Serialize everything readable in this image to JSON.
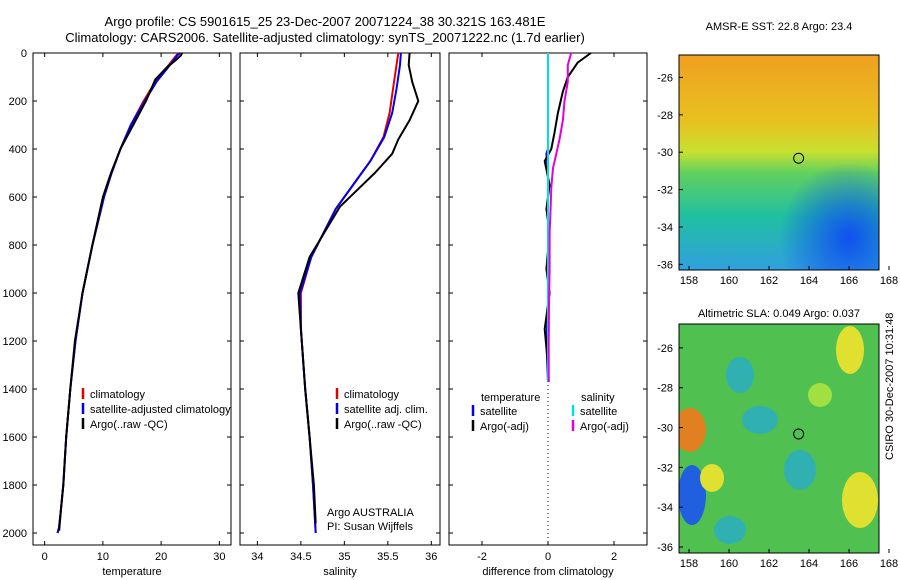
{
  "header": {
    "line1": "Argo profile: CS 5901615_25 23-Dec-2007 20071224_38 30.321S 163.481E",
    "line2": "Climatology: CARS2006. Satellite-adjusted climatology: synTS_20071222.nc (1.7d earlier)"
  },
  "side_label": "CSIRO 30-Dec-2007 10:31:48",
  "colors": {
    "climatology": "#e00000",
    "satellite": "#0000ee",
    "argo": "#000000",
    "satellite_sal": "#00e0e0",
    "argo_sal": "#e000e0"
  },
  "chart_data": [
    {
      "type": "line",
      "id": "temperature",
      "xlabel": "temperature",
      "xlim": [
        -2,
        32
      ],
      "ylim": [
        0,
        2050
      ],
      "y_reversed": true,
      "xticks": [
        "0",
        "10",
        "20",
        "30"
      ],
      "yticks": [
        "0",
        "200",
        "400",
        "600",
        "800",
        "1000",
        "1200",
        "1400",
        "1600",
        "1800",
        "2000"
      ],
      "legend": [
        "climatology",
        "satellite-adjusted climatology",
        "Argo(..raw -QC)"
      ],
      "legend_colors": [
        "#e00000",
        "#0000ee",
        "#000000"
      ],
      "series": [
        {
          "name": "climatology",
          "color": "#e00000",
          "x": [
            23,
            22.6,
            21,
            19,
            17,
            14.8,
            13,
            11.5,
            10.2,
            8.2,
            6.5,
            5.3,
            4.4,
            3.7,
            3.2,
            2.8,
            2.45,
            2.2
          ],
          "y": [
            0,
            10,
            60,
            120,
            200,
            300,
            400,
            500,
            600,
            800,
            1000,
            1200,
            1400,
            1600,
            1800,
            1900,
            1980,
            2000
          ]
        },
        {
          "name": "satellite-adjusted climatology",
          "color": "#0000ee",
          "x": [
            23.2,
            22.8,
            21.2,
            19.2,
            17.2,
            14.8,
            13,
            11.5,
            10.2,
            8.2,
            6.5,
            5.3,
            4.4,
            3.7,
            3.2,
            2.8,
            2.45,
            2.2
          ],
          "y": [
            0,
            10,
            60,
            120,
            200,
            300,
            400,
            500,
            600,
            800,
            1000,
            1200,
            1400,
            1600,
            1800,
            1900,
            1980,
            2000
          ]
        },
        {
          "name": "Argo(..raw -QC)",
          "color": "#000000",
          "x": [
            23.6,
            23.4,
            22.5,
            21,
            19,
            17.4,
            15.2,
            13,
            11.4,
            10,
            8.2,
            6.5,
            5.2,
            4.4,
            3.7,
            3.2,
            2.8,
            2.5
          ],
          "y": [
            0,
            10,
            30,
            60,
            110,
            200,
            300,
            400,
            500,
            600,
            800,
            1000,
            1200,
            1400,
            1600,
            1800,
            1900,
            1990
          ]
        }
      ]
    },
    {
      "type": "line",
      "id": "salinity",
      "xlabel": "salinity",
      "xlim": [
        33.8,
        36.1
      ],
      "ylim": [
        0,
        2050
      ],
      "y_reversed": true,
      "xticks": [
        "34",
        "34.5",
        "35",
        "35.5",
        "36"
      ],
      "legend": [
        "climatology",
        "satellite adj. clim.",
        "Argo(..raw -QC)"
      ],
      "legend_colors": [
        "#e00000",
        "#0000ee",
        "#000000"
      ],
      "annotation": [
        "Argo AUSTRALIA",
        "PI: Susan Wijffels"
      ],
      "series": [
        {
          "name": "climatology",
          "color": "#e00000",
          "x": [
            35.62,
            35.6,
            35.56,
            35.52,
            35.45,
            35.3,
            35.1,
            34.9,
            34.62,
            34.5,
            34.5,
            34.55,
            34.6,
            34.64,
            34.67
          ],
          "y": [
            0,
            50,
            150,
            250,
            350,
            450,
            550,
            650,
            850,
            1000,
            1150,
            1400,
            1600,
            1800,
            2000
          ]
        },
        {
          "name": "satellite adj. clim.",
          "color": "#0000ee",
          "x": [
            35.65,
            35.64,
            35.6,
            35.55,
            35.46,
            35.3,
            35.1,
            34.9,
            34.62,
            34.49,
            34.5,
            34.55,
            34.6,
            34.64,
            34.67
          ],
          "y": [
            0,
            50,
            150,
            250,
            350,
            450,
            550,
            650,
            850,
            1000,
            1150,
            1400,
            1600,
            1800,
            2000
          ]
        },
        {
          "name": "Argo(..raw -QC)",
          "color": "#000000",
          "x": [
            35.75,
            35.74,
            35.78,
            35.85,
            35.75,
            35.62,
            35.55,
            35.35,
            35.15,
            34.95,
            34.6,
            34.47,
            34.5,
            34.55,
            34.6,
            34.65,
            34.67
          ],
          "y": [
            0,
            50,
            120,
            200,
            280,
            360,
            420,
            500,
            570,
            640,
            850,
            1000,
            1150,
            1400,
            1600,
            1800,
            1960
          ]
        }
      ]
    },
    {
      "type": "line",
      "id": "difference",
      "xlabel": "difference from climatology",
      "xlim": [
        -3,
        3
      ],
      "ylim": [
        0,
        2050
      ],
      "y_reversed": true,
      "xticks": [
        "-2",
        "0",
        "2"
      ],
      "legend_groups": [
        {
          "title": "temperature",
          "items": [
            "satellite",
            "Argo(-adj)"
          ],
          "colors": [
            "#0000ee",
            "#000000"
          ]
        },
        {
          "title": "salinity",
          "items": [
            "satellite",
            "Argo(-adj)"
          ],
          "colors": [
            "#00e0e0",
            "#e000e0"
          ]
        }
      ],
      "series": [
        {
          "name": "temperature satellite",
          "color": "#0000ee",
          "x": [
            0,
            0,
            0,
            -0.05,
            0,
            0,
            0.02,
            -0.05,
            0
          ],
          "y": [
            0,
            300,
            400,
            420,
            500,
            700,
            1000,
            1200,
            1370
          ]
        },
        {
          "name": "temperature Argo(-adj)",
          "color": "#000000",
          "x": [
            1.3,
            0.9,
            0.6,
            0.45,
            0.3,
            0.2,
            0.1,
            -0.1,
            0.05,
            -0.05,
            0.05,
            -0.05,
            0.05,
            -0.1,
            0,
            0.02
          ],
          "y": [
            0,
            40,
            100,
            160,
            250,
            330,
            400,
            450,
            550,
            650,
            750,
            900,
            1000,
            1150,
            1300,
            1370
          ]
        },
        {
          "name": "salinity satellite",
          "color": "#00e0e0",
          "x": [
            0,
            0,
            0,
            0,
            0
          ],
          "y": [
            0,
            300,
            700,
            1100,
            1370
          ]
        },
        {
          "name": "salinity Argo(-adj)",
          "color": "#e000e0",
          "x": [
            0.7,
            0.6,
            0.6,
            0.5,
            0.45,
            0.35,
            0.25,
            0.15,
            0.1,
            0.08,
            0.05,
            0.05,
            0.03,
            0.02,
            0.02
          ],
          "y": [
            0,
            50,
            120,
            200,
            280,
            360,
            420,
            480,
            560,
            650,
            750,
            900,
            1050,
            1200,
            1370
          ]
        }
      ]
    },
    {
      "type": "heatmap",
      "id": "sst_map",
      "title": "AMSR-E SST: 22.8 Argo: 23.4",
      "xlim": [
        157.5,
        167.5
      ],
      "ylim": [
        -36.3,
        -24.8
      ],
      "xticks": [
        "158",
        "160",
        "162",
        "164",
        "166",
        "168"
      ],
      "yticks": [
        "-26",
        "-28",
        "-30",
        "-32",
        "-34",
        "-36"
      ],
      "argo_position": {
        "lon": 163.481,
        "lat": -30.321
      }
    },
    {
      "type": "heatmap",
      "id": "sla_map",
      "title": "Altimetric SLA: 0.049 Argo: 0.037",
      "xlim": [
        157.5,
        167.5
      ],
      "ylim": [
        -36.3,
        -24.8
      ],
      "xticks": [
        "158",
        "160",
        "162",
        "164",
        "166",
        "168"
      ],
      "yticks": [
        "-26",
        "-28",
        "-30",
        "-32",
        "-34",
        "-36"
      ],
      "argo_position": {
        "lon": 163.481,
        "lat": -30.321
      }
    }
  ]
}
